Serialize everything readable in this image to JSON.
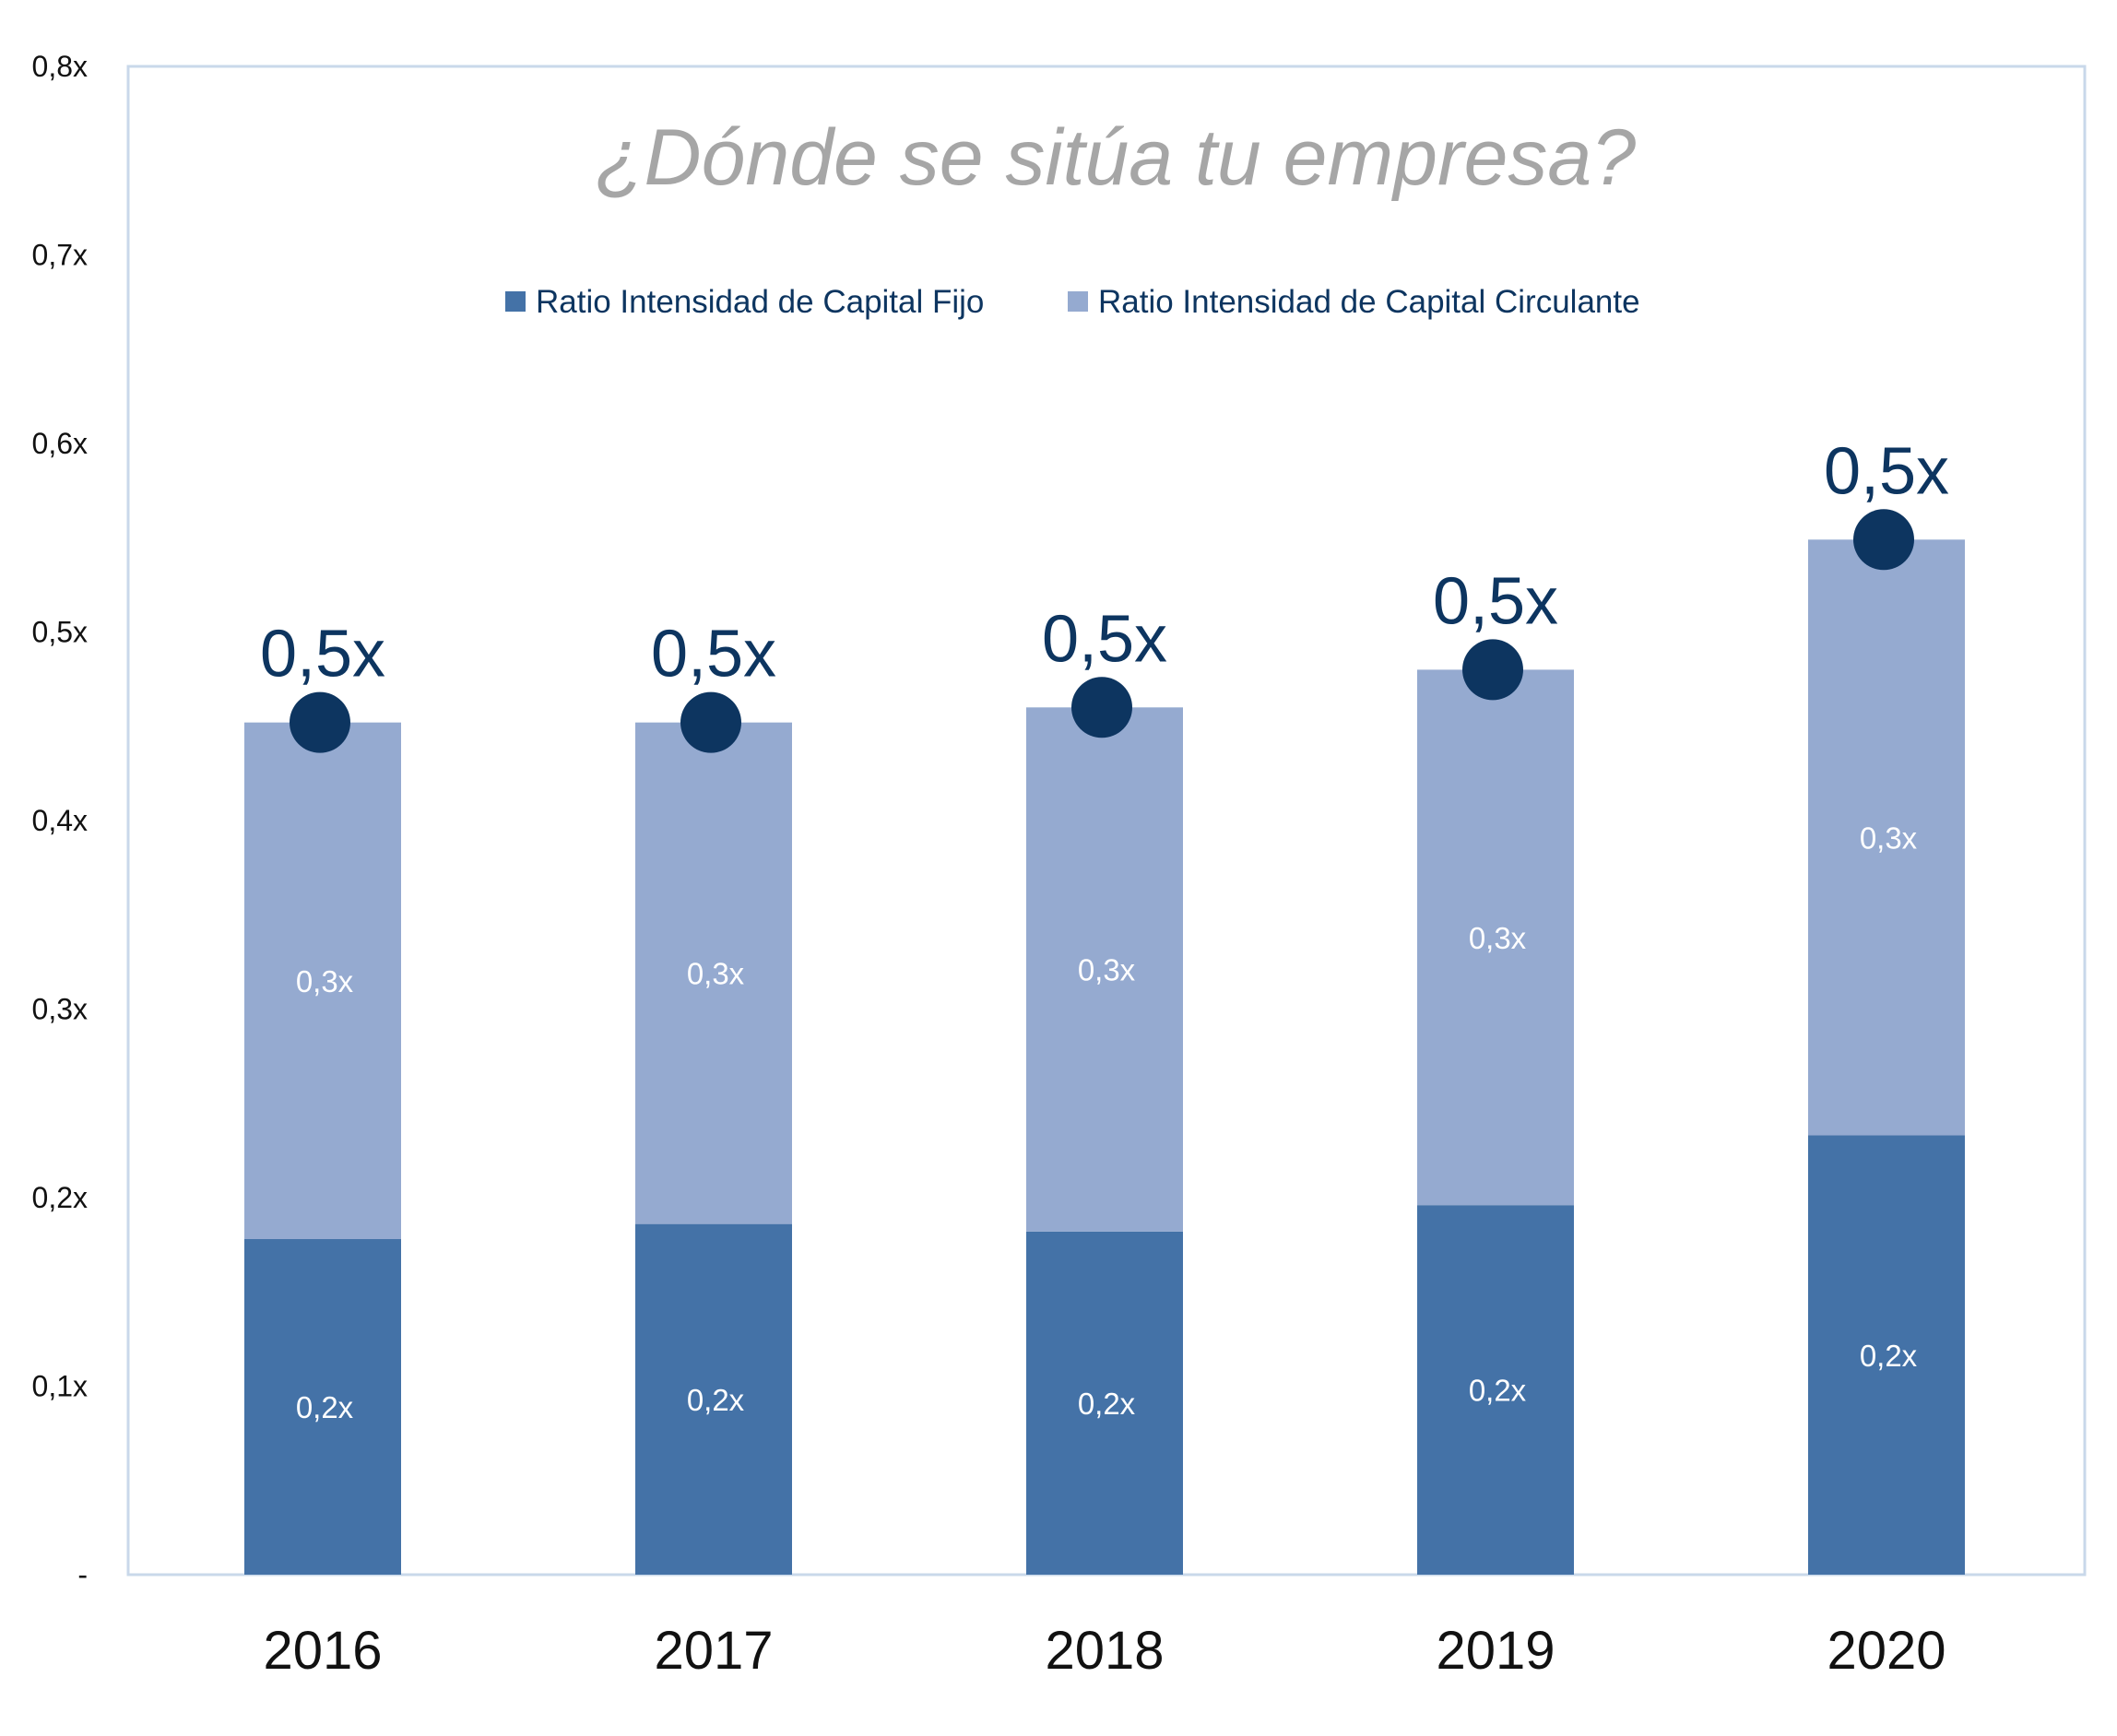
{
  "chart_data": {
    "type": "bar",
    "stacked": true,
    "title": "¿Dónde se sitúa tu empresa?",
    "categories": [
      "2016",
      "2017",
      "2018",
      "2019",
      "2020"
    ],
    "series": [
      {
        "name": "Ratio Intensidad de Capital Fijo",
        "values": [
          0.178,
          0.186,
          0.182,
          0.196,
          0.233
        ],
        "labels": [
          "0,2x",
          "0,2x",
          "0,2x",
          "0,2x",
          "0,2x"
        ],
        "color": "#4472a7"
      },
      {
        "name": "Ratio Intensidad de Capital Circulante",
        "values": [
          0.274,
          0.266,
          0.278,
          0.284,
          0.316
        ],
        "labels": [
          "0,3x",
          "0,3x",
          "0,3x",
          "0,3x",
          "0,3x"
        ],
        "color": "#95aad0"
      }
    ],
    "totals": {
      "values": [
        0.452,
        0.452,
        0.46,
        0.48,
        0.549
      ],
      "labels": [
        "0,5x",
        "0,5x",
        "0,5x",
        "0,5x",
        "0,5x"
      ],
      "marker_color": "#0d3560"
    },
    "y_ticks": [
      "-",
      "0,1x",
      "0,2x",
      "0,3x",
      "0,4x",
      "0,5x",
      "0,6x",
      "0,7x",
      "0,8x"
    ],
    "ylim": [
      0,
      0.8
    ],
    "grid": false,
    "legend_position": "top-center",
    "plot_border_color": "#c9d8ea"
  }
}
